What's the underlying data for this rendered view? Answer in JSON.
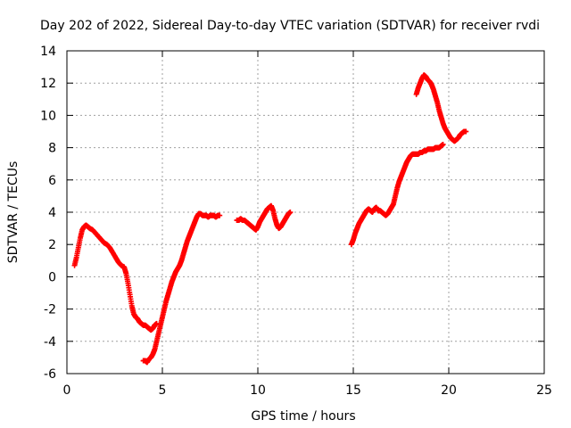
{
  "chart_data": {
    "type": "scatter",
    "title": "Day 202 of 2022, Sidereal Day-to-day VTEC variation (SDTVAR) for receiver rvdi",
    "xlabel": "GPS time / hours",
    "ylabel": "SDTVAR / TECUs",
    "xlim": [
      0,
      25
    ],
    "ylim": [
      -6,
      14
    ],
    "xticks": [
      0,
      5,
      10,
      15,
      20,
      25
    ],
    "yticks": [
      -6,
      -4,
      -2,
      0,
      2,
      4,
      6,
      8,
      10,
      12,
      14
    ],
    "grid": true,
    "marker": "plus",
    "series_color": "#ff0000",
    "series": [
      {
        "x": [
          0.4,
          0.5,
          0.6,
          0.7,
          0.8,
          0.9,
          1.0,
          1.1,
          1.2,
          1.35,
          1.5,
          1.65,
          1.8,
          1.95,
          2.1,
          2.25,
          2.4,
          2.55,
          2.7,
          2.85,
          3.0,
          3.1,
          3.2,
          3.3,
          3.4,
          3.5,
          3.6,
          3.7,
          3.8,
          3.9,
          4.0,
          4.1,
          4.2,
          4.3,
          4.4,
          4.5,
          4.6,
          4.7
        ],
        "y": [
          0.7,
          1.2,
          1.8,
          2.4,
          2.9,
          3.1,
          3.2,
          3.1,
          3.0,
          2.9,
          2.7,
          2.5,
          2.3,
          2.1,
          2.0,
          1.8,
          1.5,
          1.2,
          0.9,
          0.7,
          0.6,
          0.2,
          -0.4,
          -1.1,
          -1.8,
          -2.3,
          -2.5,
          -2.6,
          -2.8,
          -2.9,
          -3.0,
          -3.0,
          -3.1,
          -3.2,
          -3.3,
          -3.2,
          -3.0,
          -2.9
        ]
      },
      {
        "x": [
          4.0,
          4.1,
          4.2,
          4.3,
          4.4,
          4.5,
          4.6,
          4.7,
          4.8,
          4.9,
          5.0,
          5.1,
          5.2,
          5.3,
          5.4,
          5.5,
          5.6,
          5.7,
          5.8,
          5.9,
          6.0,
          6.1,
          6.2,
          6.3,
          6.4,
          6.5,
          6.6,
          6.7,
          6.8,
          6.9,
          7.0,
          7.1,
          7.2,
          7.3,
          7.4,
          7.5,
          7.6,
          7.7,
          7.8,
          7.9,
          8.0
        ],
        "y": [
          -5.2,
          -5.2,
          -5.3,
          -5.1,
          -5.0,
          -4.8,
          -4.5,
          -4.0,
          -3.5,
          -3.0,
          -2.5,
          -2.0,
          -1.5,
          -1.1,
          -0.7,
          -0.3,
          0.0,
          0.3,
          0.5,
          0.7,
          1.0,
          1.4,
          1.8,
          2.2,
          2.5,
          2.8,
          3.1,
          3.4,
          3.7,
          3.9,
          3.9,
          3.8,
          3.8,
          3.8,
          3.7,
          3.8,
          3.8,
          3.8,
          3.7,
          3.8,
          3.8
        ]
      },
      {
        "x": [
          8.9,
          9.0,
          9.1,
          9.2,
          9.3,
          9.4,
          9.5,
          9.6,
          9.7,
          9.8,
          9.9,
          10.0,
          10.1,
          10.2,
          10.3,
          10.4,
          10.5,
          10.6,
          10.7,
          10.8,
          10.9,
          11.0,
          11.1,
          11.2,
          11.3,
          11.4,
          11.5,
          11.6,
          11.7
        ],
        "y": [
          3.5,
          3.5,
          3.6,
          3.5,
          3.5,
          3.4,
          3.3,
          3.2,
          3.1,
          3.0,
          2.9,
          3.1,
          3.4,
          3.6,
          3.8,
          4.0,
          4.2,
          4.3,
          4.4,
          4.1,
          3.6,
          3.2,
          3.0,
          3.1,
          3.3,
          3.5,
          3.7,
          3.9,
          4.0
        ]
      },
      {
        "x": [
          14.9,
          15.0,
          15.1,
          15.2,
          15.3,
          15.4,
          15.5,
          15.6,
          15.7,
          15.8,
          15.9,
          16.0,
          16.1,
          16.2,
          16.3,
          16.4,
          16.5,
          16.6,
          16.7,
          16.8,
          16.9,
          17.0,
          17.1,
          17.2,
          17.3,
          17.4,
          17.5,
          17.6,
          17.7,
          17.8,
          17.9,
          18.0,
          18.1,
          18.2,
          18.3,
          18.4,
          18.5,
          18.6,
          18.7,
          18.8,
          18.9,
          19.0,
          19.1,
          19.2,
          19.3,
          19.4,
          19.5,
          19.6,
          19.7
        ],
        "y": [
          2.0,
          2.3,
          2.7,
          3.0,
          3.3,
          3.5,
          3.7,
          3.9,
          4.1,
          4.2,
          4.1,
          4.0,
          4.2,
          4.3,
          4.1,
          4.1,
          4.0,
          3.9,
          3.8,
          3.9,
          4.1,
          4.3,
          4.5,
          5.0,
          5.5,
          5.9,
          6.2,
          6.5,
          6.8,
          7.1,
          7.3,
          7.5,
          7.6,
          7.6,
          7.6,
          7.6,
          7.7,
          7.7,
          7.8,
          7.8,
          7.9,
          7.9,
          7.9,
          7.9,
          8.0,
          8.0,
          8.0,
          8.1,
          8.2
        ]
      },
      {
        "x": [
          18.3,
          18.4,
          18.5,
          18.6,
          18.7,
          18.8,
          18.9,
          19.0,
          19.1,
          19.2,
          19.3,
          19.4,
          19.5,
          19.6,
          19.7,
          19.8,
          19.9,
          20.0,
          20.1,
          20.2,
          20.3,
          20.4,
          20.5,
          20.6,
          20.7,
          20.8,
          20.9
        ],
        "y": [
          11.3,
          11.7,
          12.0,
          12.3,
          12.5,
          12.4,
          12.2,
          12.1,
          11.9,
          11.6,
          11.2,
          10.8,
          10.3,
          9.9,
          9.5,
          9.2,
          9.0,
          8.8,
          8.6,
          8.5,
          8.4,
          8.5,
          8.6,
          8.8,
          8.9,
          9.0,
          9.0
        ]
      }
    ]
  }
}
